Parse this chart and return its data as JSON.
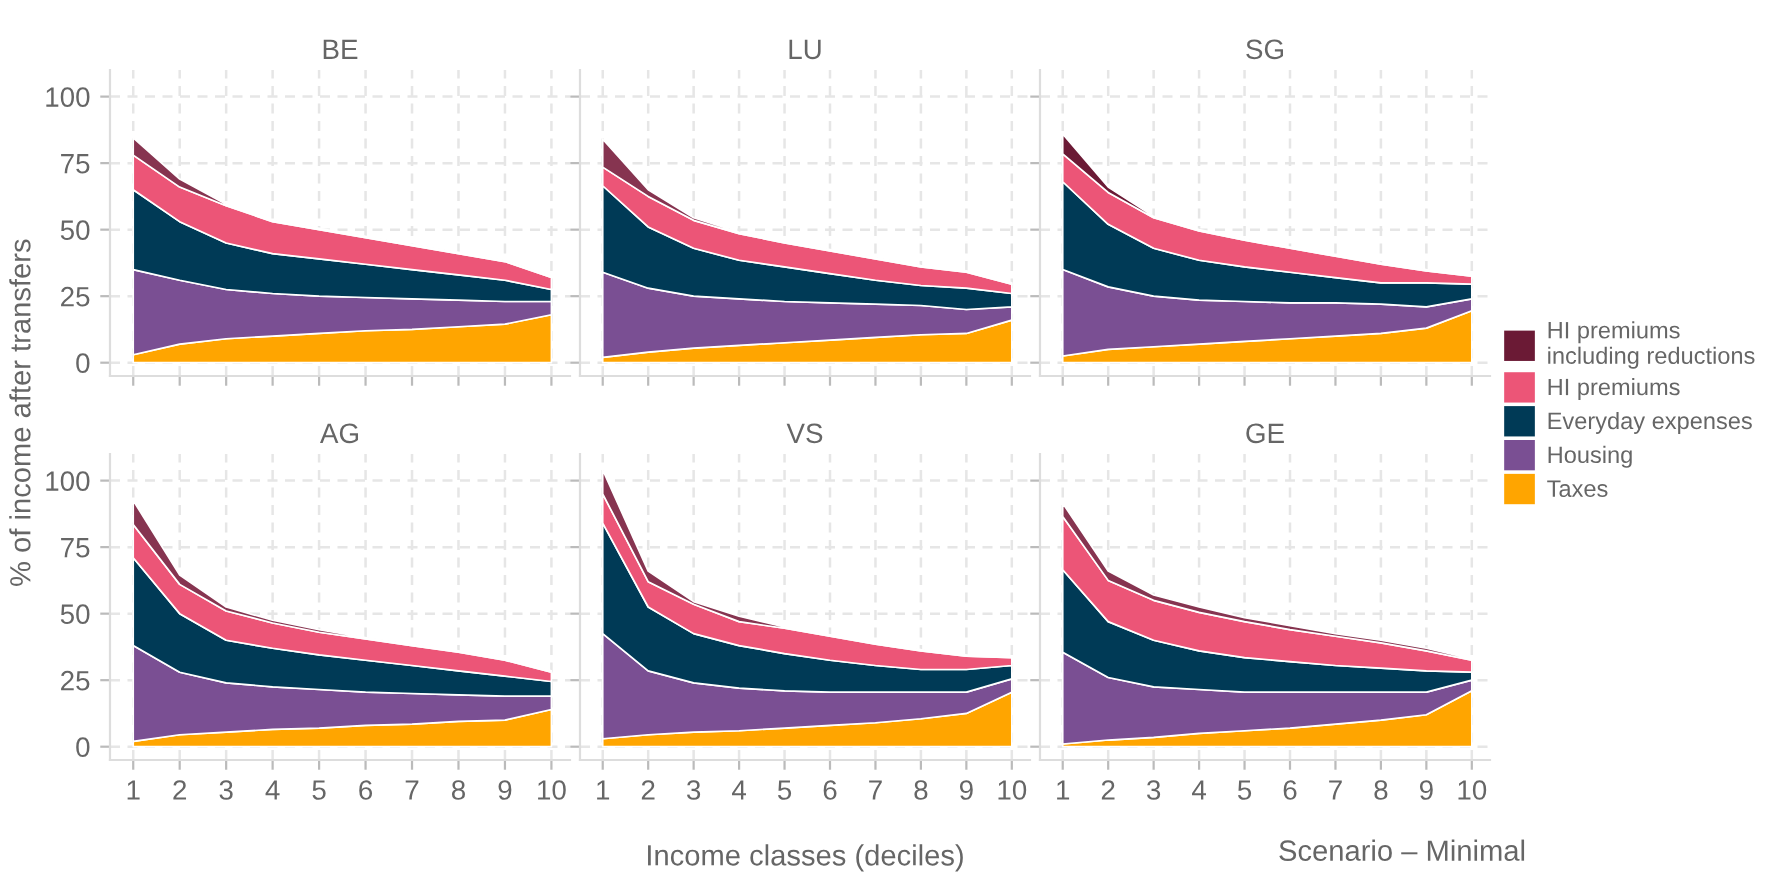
{
  "chart_data": [
    {
      "type": "area",
      "stacked": true,
      "title": "BE",
      "ylabel": "% of income after transfers",
      "x": [
        1,
        2,
        3,
        4,
        5,
        6,
        7,
        8,
        9,
        10
      ],
      "xlim": [
        0.5,
        10.4
      ],
      "ylim": [
        -5,
        110
      ],
      "xticks": [
        1,
        2,
        3,
        4,
        5,
        6,
        7,
        8,
        9,
        10
      ],
      "yticks": [
        0,
        25,
        50,
        75,
        100
      ],
      "grid": true,
      "legend": false,
      "tick_labels": "y",
      "series": [
        {
          "color": "#ffa500",
          "values": [
            3,
            7,
            9,
            10,
            11,
            12,
            12.5,
            13.5,
            14.5,
            18
          ]
        },
        {
          "color": "#7a4f93",
          "values": [
            32,
            24,
            18.5,
            16,
            14,
            12.5,
            11.5,
            10,
            8.5,
            5
          ]
        },
        {
          "color": "#003a56",
          "values": [
            30,
            22,
            17.5,
            15,
            14,
            12.5,
            11,
            9.5,
            8,
            4.5
          ]
        },
        {
          "color": "#ec5577",
          "values": [
            13,
            13,
            14,
            12,
            11,
            10,
            9,
            8,
            7,
            4.5
          ]
        },
        {
          "color": "#863450",
          "values": [
            6.5,
            3,
            0.5,
            0.5,
            0.5,
            0.5,
            0.5,
            0.5,
            0.5,
            0.5
          ]
        }
      ]
    },
    {
      "type": "area",
      "stacked": true,
      "title": "LU",
      "x": [
        1,
        2,
        3,
        4,
        5,
        6,
        7,
        8,
        9,
        10
      ],
      "xlim": [
        0.5,
        10.4
      ],
      "ylim": [
        -5,
        110
      ],
      "xticks": [
        1,
        2,
        3,
        4,
        5,
        6,
        7,
        8,
        9,
        10
      ],
      "yticks": [
        0,
        25,
        50,
        75,
        100
      ],
      "grid": true,
      "legend": false,
      "tick_labels": false,
      "series": [
        {
          "color": "#ffa500",
          "values": [
            2,
            4,
            5.5,
            6.5,
            7.5,
            8.5,
            9.5,
            10.5,
            11,
            16
          ]
        },
        {
          "color": "#7a4f93",
          "values": [
            32,
            24,
            19.5,
            17.5,
            15.5,
            14,
            12.5,
            11,
            9,
            5
          ]
        },
        {
          "color": "#003a56",
          "values": [
            32.5,
            23,
            18,
            14.5,
            13,
            11,
            9,
            7.5,
            8,
            5
          ]
        },
        {
          "color": "#ec5577",
          "values": [
            7,
            11.5,
            10.5,
            10,
            9,
            8.5,
            8,
            7,
            6,
            3.5
          ]
        },
        {
          "color": "#863450",
          "values": [
            10.5,
            2.5,
            1,
            0.5,
            0.5,
            0.5,
            0.5,
            0.5,
            0.5,
            0.5
          ]
        }
      ]
    },
    {
      "type": "area",
      "stacked": true,
      "title": "SG",
      "x": [
        1,
        2,
        3,
        4,
        5,
        6,
        7,
        8,
        9,
        10
      ],
      "xlim": [
        0.5,
        10.4
      ],
      "ylim": [
        -5,
        110
      ],
      "xticks": [
        1,
        2,
        3,
        4,
        5,
        6,
        7,
        8,
        9,
        10
      ],
      "yticks": [
        0,
        25,
        50,
        75,
        100
      ],
      "grid": true,
      "legend": "right",
      "tick_labels": false,
      "series": [
        {
          "name": "Taxes",
          "color": "#ffa500",
          "values": [
            2.5,
            5,
            6,
            7,
            8,
            9,
            10,
            11,
            13,
            19.5
          ]
        },
        {
          "name": "Housing",
          "color": "#7a4f93",
          "values": [
            32.5,
            23.5,
            19,
            16.5,
            15,
            13.5,
            12.5,
            11,
            8,
            4.5
          ]
        },
        {
          "name": "Everyday expenses",
          "color": "#003a56",
          "values": [
            33,
            23.5,
            18,
            15,
            13,
            11.5,
            9.5,
            8,
            9,
            5.5
          ]
        },
        {
          "name": "HI premiums",
          "color": "#ec5577",
          "values": [
            10.5,
            12,
            11.5,
            11,
            10,
            9,
            8,
            7,
            4.5,
            3
          ]
        },
        {
          "name": "HI premiums\nincluding reductions",
          "color": "#6b1a35",
          "values": [
            7.5,
            2,
            0.5,
            0.5,
            0.5,
            0.5,
            0.5,
            0.5,
            0.5,
            0.5
          ]
        }
      ]
    },
    {
      "type": "area",
      "stacked": true,
      "title": "AG",
      "x": [
        1,
        2,
        3,
        4,
        5,
        6,
        7,
        8,
        9,
        10
      ],
      "xlim": [
        0.5,
        10.4
      ],
      "ylim": [
        -5,
        110
      ],
      "xticks": [
        1,
        2,
        3,
        4,
        5,
        6,
        7,
        8,
        9,
        10
      ],
      "yticks": [
        0,
        25,
        50,
        75,
        100
      ],
      "grid": true,
      "legend": false,
      "series": [
        {
          "color": "#ffa500",
          "values": [
            2,
            4.5,
            5.5,
            6.5,
            7,
            8,
            8.5,
            9.5,
            10,
            14
          ]
        },
        {
          "color": "#7a4f93",
          "values": [
            36,
            23.5,
            18.5,
            16,
            14.5,
            12.5,
            11.5,
            10,
            9,
            5
          ]
        },
        {
          "color": "#003a56",
          "values": [
            33,
            22,
            16,
            14.5,
            13,
            12,
            10.5,
            9,
            7.5,
            5.5
          ]
        },
        {
          "color": "#ec5577",
          "values": [
            12.5,
            11,
            11,
            9.5,
            8.5,
            8,
            7.5,
            7,
            6,
            3.5
          ]
        },
        {
          "color": "#863450",
          "values": [
            9,
            3.5,
            1.5,
            1,
            1,
            0.5,
            0.5,
            0.5,
            0.5,
            0.5
          ]
        }
      ]
    },
    {
      "type": "area",
      "stacked": true,
      "title": "VS",
      "xlabel": "Income classes (deciles)",
      "x": [
        1,
        2,
        3,
        4,
        5,
        6,
        7,
        8,
        9,
        10
      ],
      "xlim": [
        0.5,
        10.4
      ],
      "ylim": [
        -5,
        110
      ],
      "xticks": [
        1,
        2,
        3,
        4,
        5,
        6,
        7,
        8,
        9,
        10
      ],
      "yticks": [
        0,
        25,
        50,
        75,
        100
      ],
      "grid": true,
      "legend": false,
      "tick_labels": "x",
      "series": [
        {
          "color": "#ffa500",
          "values": [
            3,
            4.5,
            5.5,
            6,
            7,
            8,
            9,
            10.5,
            12.5,
            20.5
          ]
        },
        {
          "color": "#7a4f93",
          "values": [
            39.5,
            24,
            18.5,
            16,
            14,
            12.5,
            11.5,
            10,
            8,
            5
          ]
        },
        {
          "color": "#003a56",
          "values": [
            41.5,
            24,
            18.5,
            16,
            14,
            12,
            10,
            8.5,
            8.5,
            5
          ]
        },
        {
          "color": "#ec5577",
          "values": [
            11,
            9.5,
            11,
            9,
            9.5,
            9,
            8,
            7,
            5,
            3
          ]
        },
        {
          "color": "#863450",
          "values": [
            9,
            4,
            1,
            2,
            0.5,
            0.5,
            0.5,
            0.5,
            0.5,
            0.5
          ]
        }
      ]
    },
    {
      "type": "area",
      "stacked": true,
      "title": "GE",
      "annotations": [
        "Scenario – Minimal"
      ],
      "x": [
        1,
        2,
        3,
        4,
        5,
        6,
        7,
        8,
        9,
        10
      ],
      "xlim": [
        0.5,
        10.4
      ],
      "ylim": [
        -5,
        110
      ],
      "xticks": [
        1,
        2,
        3,
        4,
        5,
        6,
        7,
        8,
        9,
        10
      ],
      "yticks": [
        0,
        25,
        50,
        75,
        100
      ],
      "grid": true,
      "legend": false,
      "tick_labels": "x",
      "series": [
        {
          "color": "#ffa500",
          "values": [
            1,
            2.5,
            3.5,
            5,
            6,
            7,
            8.5,
            10,
            12,
            21
          ]
        },
        {
          "color": "#7a4f93",
          "values": [
            34.5,
            23.5,
            19,
            16.5,
            14.5,
            13.5,
            12,
            10.5,
            8.5,
            4
          ]
        },
        {
          "color": "#003a56",
          "values": [
            31,
            21,
            17.5,
            14.5,
            13,
            11.5,
            10,
            9,
            8,
            3
          ]
        },
        {
          "color": "#ec5577",
          "values": [
            20,
            15.5,
            15,
            14.5,
            13.5,
            12,
            11,
            9.5,
            7.5,
            4.5
          ]
        },
        {
          "color": "#863450",
          "values": [
            5,
            3.5,
            2,
            2,
            1.5,
            1.5,
            1,
            1,
            1,
            0.5
          ]
        }
      ]
    }
  ]
}
